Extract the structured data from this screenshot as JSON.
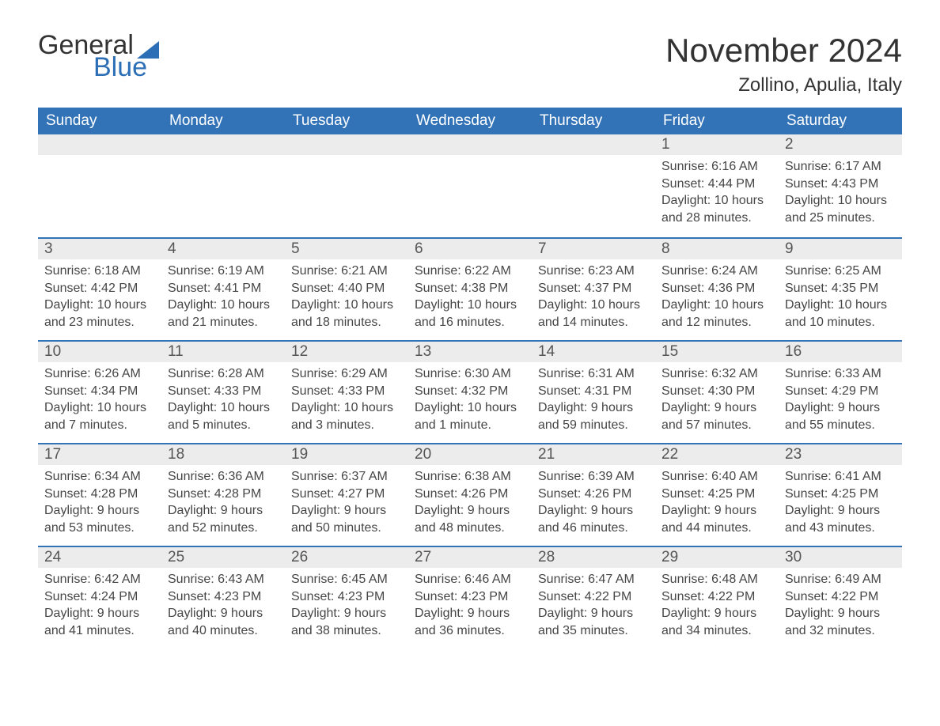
{
  "brand": {
    "word1": "General",
    "word2": "Blue",
    "accent_color": "#2d6fb6"
  },
  "title": "November 2024",
  "location": "Zollino, Apulia, Italy",
  "colors": {
    "header_bg": "#3273b8",
    "header_text": "#ffffff",
    "daynum_bg": "#ececec",
    "week_border": "#3273b8",
    "body_text": "#464646",
    "page_bg": "#ffffff"
  },
  "typography": {
    "title_fontsize": 42,
    "location_fontsize": 24,
    "header_fontsize": 19,
    "daynum_fontsize": 19,
    "body_fontsize": 16
  },
  "day_headers": [
    "Sunday",
    "Monday",
    "Tuesday",
    "Wednesday",
    "Thursday",
    "Friday",
    "Saturday"
  ],
  "weeks": [
    [
      {
        "empty": true
      },
      {
        "empty": true
      },
      {
        "empty": true
      },
      {
        "empty": true
      },
      {
        "empty": true
      },
      {
        "num": "1",
        "sunrise": "Sunrise: 6:16 AM",
        "sunset": "Sunset: 4:44 PM",
        "daylight1": "Daylight: 10 hours",
        "daylight2": "and 28 minutes."
      },
      {
        "num": "2",
        "sunrise": "Sunrise: 6:17 AM",
        "sunset": "Sunset: 4:43 PM",
        "daylight1": "Daylight: 10 hours",
        "daylight2": "and 25 minutes."
      }
    ],
    [
      {
        "num": "3",
        "sunrise": "Sunrise: 6:18 AM",
        "sunset": "Sunset: 4:42 PM",
        "daylight1": "Daylight: 10 hours",
        "daylight2": "and 23 minutes."
      },
      {
        "num": "4",
        "sunrise": "Sunrise: 6:19 AM",
        "sunset": "Sunset: 4:41 PM",
        "daylight1": "Daylight: 10 hours",
        "daylight2": "and 21 minutes."
      },
      {
        "num": "5",
        "sunrise": "Sunrise: 6:21 AM",
        "sunset": "Sunset: 4:40 PM",
        "daylight1": "Daylight: 10 hours",
        "daylight2": "and 18 minutes."
      },
      {
        "num": "6",
        "sunrise": "Sunrise: 6:22 AM",
        "sunset": "Sunset: 4:38 PM",
        "daylight1": "Daylight: 10 hours",
        "daylight2": "and 16 minutes."
      },
      {
        "num": "7",
        "sunrise": "Sunrise: 6:23 AM",
        "sunset": "Sunset: 4:37 PM",
        "daylight1": "Daylight: 10 hours",
        "daylight2": "and 14 minutes."
      },
      {
        "num": "8",
        "sunrise": "Sunrise: 6:24 AM",
        "sunset": "Sunset: 4:36 PM",
        "daylight1": "Daylight: 10 hours",
        "daylight2": "and 12 minutes."
      },
      {
        "num": "9",
        "sunrise": "Sunrise: 6:25 AM",
        "sunset": "Sunset: 4:35 PM",
        "daylight1": "Daylight: 10 hours",
        "daylight2": "and 10 minutes."
      }
    ],
    [
      {
        "num": "10",
        "sunrise": "Sunrise: 6:26 AM",
        "sunset": "Sunset: 4:34 PM",
        "daylight1": "Daylight: 10 hours",
        "daylight2": "and 7 minutes."
      },
      {
        "num": "11",
        "sunrise": "Sunrise: 6:28 AM",
        "sunset": "Sunset: 4:33 PM",
        "daylight1": "Daylight: 10 hours",
        "daylight2": "and 5 minutes."
      },
      {
        "num": "12",
        "sunrise": "Sunrise: 6:29 AM",
        "sunset": "Sunset: 4:33 PM",
        "daylight1": "Daylight: 10 hours",
        "daylight2": "and 3 minutes."
      },
      {
        "num": "13",
        "sunrise": "Sunrise: 6:30 AM",
        "sunset": "Sunset: 4:32 PM",
        "daylight1": "Daylight: 10 hours",
        "daylight2": "and 1 minute."
      },
      {
        "num": "14",
        "sunrise": "Sunrise: 6:31 AM",
        "sunset": "Sunset: 4:31 PM",
        "daylight1": "Daylight: 9 hours",
        "daylight2": "and 59 minutes."
      },
      {
        "num": "15",
        "sunrise": "Sunrise: 6:32 AM",
        "sunset": "Sunset: 4:30 PM",
        "daylight1": "Daylight: 9 hours",
        "daylight2": "and 57 minutes."
      },
      {
        "num": "16",
        "sunrise": "Sunrise: 6:33 AM",
        "sunset": "Sunset: 4:29 PM",
        "daylight1": "Daylight: 9 hours",
        "daylight2": "and 55 minutes."
      }
    ],
    [
      {
        "num": "17",
        "sunrise": "Sunrise: 6:34 AM",
        "sunset": "Sunset: 4:28 PM",
        "daylight1": "Daylight: 9 hours",
        "daylight2": "and 53 minutes."
      },
      {
        "num": "18",
        "sunrise": "Sunrise: 6:36 AM",
        "sunset": "Sunset: 4:28 PM",
        "daylight1": "Daylight: 9 hours",
        "daylight2": "and 52 minutes."
      },
      {
        "num": "19",
        "sunrise": "Sunrise: 6:37 AM",
        "sunset": "Sunset: 4:27 PM",
        "daylight1": "Daylight: 9 hours",
        "daylight2": "and 50 minutes."
      },
      {
        "num": "20",
        "sunrise": "Sunrise: 6:38 AM",
        "sunset": "Sunset: 4:26 PM",
        "daylight1": "Daylight: 9 hours",
        "daylight2": "and 48 minutes."
      },
      {
        "num": "21",
        "sunrise": "Sunrise: 6:39 AM",
        "sunset": "Sunset: 4:26 PM",
        "daylight1": "Daylight: 9 hours",
        "daylight2": "and 46 minutes."
      },
      {
        "num": "22",
        "sunrise": "Sunrise: 6:40 AM",
        "sunset": "Sunset: 4:25 PM",
        "daylight1": "Daylight: 9 hours",
        "daylight2": "and 44 minutes."
      },
      {
        "num": "23",
        "sunrise": "Sunrise: 6:41 AM",
        "sunset": "Sunset: 4:25 PM",
        "daylight1": "Daylight: 9 hours",
        "daylight2": "and 43 minutes."
      }
    ],
    [
      {
        "num": "24",
        "sunrise": "Sunrise: 6:42 AM",
        "sunset": "Sunset: 4:24 PM",
        "daylight1": "Daylight: 9 hours",
        "daylight2": "and 41 minutes."
      },
      {
        "num": "25",
        "sunrise": "Sunrise: 6:43 AM",
        "sunset": "Sunset: 4:23 PM",
        "daylight1": "Daylight: 9 hours",
        "daylight2": "and 40 minutes."
      },
      {
        "num": "26",
        "sunrise": "Sunrise: 6:45 AM",
        "sunset": "Sunset: 4:23 PM",
        "daylight1": "Daylight: 9 hours",
        "daylight2": "and 38 minutes."
      },
      {
        "num": "27",
        "sunrise": "Sunrise: 6:46 AM",
        "sunset": "Sunset: 4:23 PM",
        "daylight1": "Daylight: 9 hours",
        "daylight2": "and 36 minutes."
      },
      {
        "num": "28",
        "sunrise": "Sunrise: 6:47 AM",
        "sunset": "Sunset: 4:22 PM",
        "daylight1": "Daylight: 9 hours",
        "daylight2": "and 35 minutes."
      },
      {
        "num": "29",
        "sunrise": "Sunrise: 6:48 AM",
        "sunset": "Sunset: 4:22 PM",
        "daylight1": "Daylight: 9 hours",
        "daylight2": "and 34 minutes."
      },
      {
        "num": "30",
        "sunrise": "Sunrise: 6:49 AM",
        "sunset": "Sunset: 4:22 PM",
        "daylight1": "Daylight: 9 hours",
        "daylight2": "and 32 minutes."
      }
    ]
  ]
}
